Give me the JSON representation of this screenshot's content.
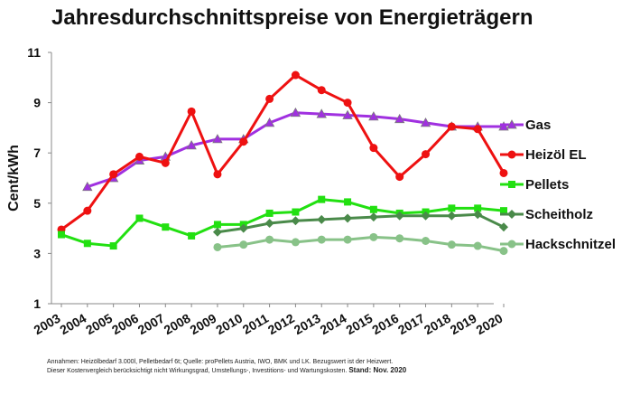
{
  "chart_data": {
    "type": "line",
    "title": "Jahresdurchschnittspreise von Energieträgern",
    "xlabel": "",
    "ylabel": "Cent/kWh",
    "x": [
      2003,
      2004,
      2005,
      2006,
      2007,
      2008,
      2009,
      2010,
      2011,
      2012,
      2013,
      2014,
      2015,
      2016,
      2017,
      2018,
      2019,
      2020
    ],
    "ylim": [
      1,
      11
    ],
    "yticks": [
      1,
      3,
      5,
      7,
      9,
      11
    ],
    "grid": false,
    "legend": "right",
    "series": [
      {
        "name": "Gas",
        "color": "#a030e0",
        "marker": "triangle",
        "values": [
          null,
          5.65,
          6.0,
          6.7,
          6.85,
          7.3,
          7.55,
          7.55,
          8.2,
          8.6,
          8.55,
          8.5,
          8.45,
          8.35,
          8.2,
          8.05,
          8.05,
          8.05
        ]
      },
      {
        "name": "Heizöl EL",
        "color": "#ee1111",
        "marker": "circle",
        "values": [
          3.95,
          4.7,
          6.15,
          6.85,
          6.6,
          8.65,
          6.15,
          7.45,
          9.15,
          10.1,
          9.5,
          9.0,
          7.2,
          6.05,
          6.95,
          8.05,
          7.95,
          6.2
        ]
      },
      {
        "name": "Pellets",
        "color": "#22e011",
        "marker": "square",
        "values": [
          3.75,
          3.4,
          3.3,
          4.4,
          4.05,
          3.7,
          4.15,
          4.15,
          4.6,
          4.65,
          5.15,
          5.05,
          4.75,
          4.6,
          4.65,
          4.8,
          4.8,
          4.7
        ]
      },
      {
        "name": "Scheitholz",
        "color": "#4a8a4a",
        "marker": "diamond",
        "values": [
          null,
          null,
          null,
          null,
          null,
          null,
          3.85,
          4.0,
          4.2,
          4.3,
          4.35,
          4.4,
          4.45,
          4.5,
          4.5,
          4.5,
          4.55,
          4.05
        ]
      },
      {
        "name": "Hackschnitzel",
        "color": "#88c288",
        "marker": "circle",
        "values": [
          null,
          null,
          null,
          null,
          null,
          null,
          3.25,
          3.35,
          3.55,
          3.45,
          3.55,
          3.55,
          3.65,
          3.6,
          3.5,
          3.35,
          3.3,
          3.1
        ]
      }
    ]
  },
  "footnote": {
    "line1": "Annahmen: Heizölbedarf 3.000l, Pelletbedarf 6t; Quelle: proPellets Austria, IWO, BMK und LK. Bezugswert ist der Heizwert.",
    "line2": "Dieser Kostenvergleich berücksichtigt nicht Wirkungsgrad, Umstellungs-, Investitions- und Wartungskosten.",
    "stand": "Stand: Nov. 2020"
  }
}
